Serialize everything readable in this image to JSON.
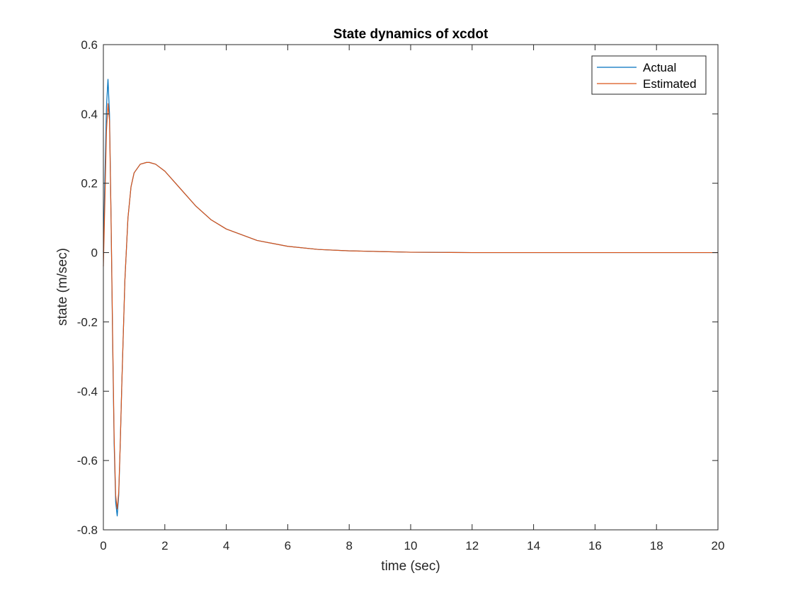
{
  "chart_data": {
    "type": "line",
    "title": "State dynamics of xcdot",
    "xlabel": "time (sec)",
    "ylabel": "state (m/sec)",
    "xlim": [
      0,
      20
    ],
    "ylim": [
      -0.8,
      0.6
    ],
    "xticks": [
      "0",
      "2",
      "4",
      "6",
      "8",
      "10",
      "12",
      "14",
      "16",
      "18",
      "20"
    ],
    "yticks": [
      "-0.8",
      "-0.6",
      "-0.4",
      "-0.2",
      "0",
      "0.2",
      "0.4",
      "0.6"
    ],
    "grid": false,
    "legend_position": "top-right",
    "series": [
      {
        "name": "Actual",
        "color": "#0072BD",
        "x": [
          0,
          0.05,
          0.1,
          0.15,
          0.2,
          0.25,
          0.3,
          0.35,
          0.4,
          0.45,
          0.5,
          0.55,
          0.6,
          0.7,
          0.8,
          0.9,
          1.0,
          1.2,
          1.4,
          1.5,
          1.7,
          2.0,
          2.5,
          3.0,
          3.5,
          4.0,
          5.0,
          6.0,
          7.0,
          8.0,
          9.0,
          10.0,
          11.0,
          12.0,
          14.0,
          16.0,
          18.0,
          20.0
        ],
        "y": [
          0,
          0.22,
          0.42,
          0.5,
          0.4,
          0.1,
          -0.25,
          -0.55,
          -0.72,
          -0.76,
          -0.7,
          -0.55,
          -0.38,
          -0.08,
          0.1,
          0.19,
          0.23,
          0.255,
          0.26,
          0.26,
          0.255,
          0.235,
          0.185,
          0.135,
          0.095,
          0.068,
          0.035,
          0.018,
          0.009,
          0.005,
          0.003,
          0.001,
          0.0005,
          0,
          0,
          0,
          0,
          0
        ]
      },
      {
        "name": "Estimated",
        "color": "#D95319",
        "x": [
          0,
          0.05,
          0.1,
          0.15,
          0.2,
          0.25,
          0.3,
          0.35,
          0.4,
          0.45,
          0.5,
          0.55,
          0.6,
          0.7,
          0.8,
          0.9,
          1.0,
          1.2,
          1.4,
          1.5,
          1.7,
          2.0,
          2.5,
          3.0,
          3.5,
          4.0,
          5.0,
          6.0,
          7.0,
          8.0,
          9.0,
          10.0,
          11.0,
          12.0,
          14.0,
          16.0,
          18.0,
          20.0
        ],
        "y": [
          -0.04,
          0.15,
          0.35,
          0.43,
          0.38,
          0.1,
          -0.23,
          -0.53,
          -0.7,
          -0.74,
          -0.69,
          -0.55,
          -0.38,
          -0.08,
          0.1,
          0.19,
          0.23,
          0.255,
          0.26,
          0.26,
          0.255,
          0.235,
          0.185,
          0.135,
          0.095,
          0.068,
          0.035,
          0.018,
          0.009,
          0.005,
          0.003,
          0.001,
          0.0005,
          0,
          0,
          0,
          0,
          0
        ]
      }
    ]
  }
}
